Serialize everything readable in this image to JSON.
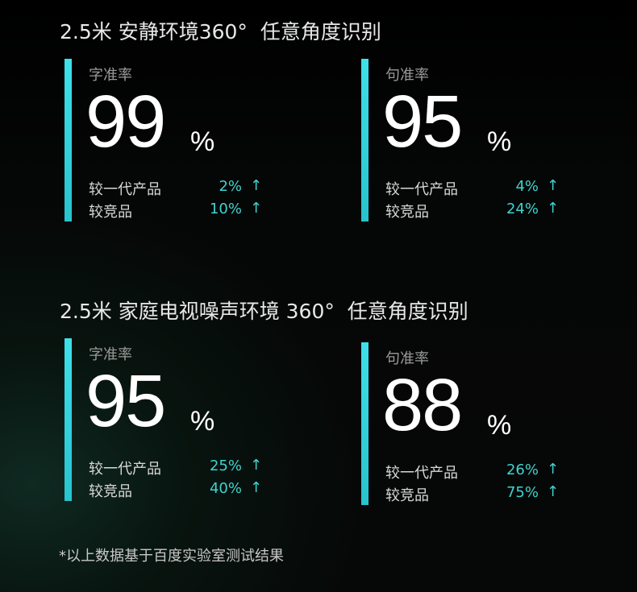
{
  "sections": [
    {
      "title": "2.5米 安静环境360°  任意角度识别",
      "cards": [
        {
          "label": "字准率",
          "value": "99",
          "unit": "%",
          "rows": [
            {
              "label": "较一代产品",
              "value": "2%",
              "arrow": "↑"
            },
            {
              "label": "较竞品",
              "value": "10%",
              "arrow": "↑"
            }
          ]
        },
        {
          "label": "句准率",
          "value": "95",
          "unit": "%",
          "rows": [
            {
              "label": "较一代产品",
              "value": "4%",
              "arrow": "↑"
            },
            {
              "label": "较竞品",
              "value": "24%",
              "arrow": "↑"
            }
          ]
        }
      ]
    },
    {
      "title": "2.5米 家庭电视噪声环境 360°  任意角度识别",
      "cards": [
        {
          "label": "字准率",
          "value": "95",
          "unit": "%",
          "rows": [
            {
              "label": "较一代产品",
              "value": "25%",
              "arrow": "↑"
            },
            {
              "label": "较竞品",
              "value": "40%",
              "arrow": "↑"
            }
          ]
        },
        {
          "label": "句准率",
          "value": "88",
          "unit": "%",
          "rows": [
            {
              "label": "较一代产品",
              "value": "26%",
              "arrow": "↑"
            },
            {
              "label": "较竞品",
              "value": "75%",
              "arrow": "↑"
            }
          ]
        }
      ]
    }
  ],
  "footnote": "*以上数据基于百度实验室测试结果",
  "colors": {
    "accent": "#2fd6e0",
    "increase": "#3fd3cf"
  }
}
